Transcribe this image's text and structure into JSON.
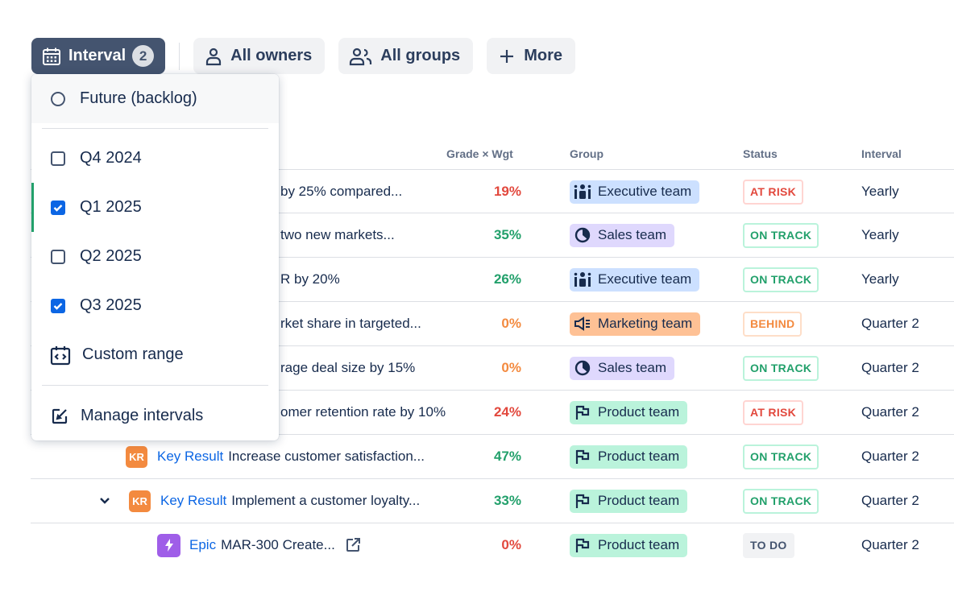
{
  "toolbar": {
    "interval_label": "Interval",
    "interval_count": "2",
    "owners_label": "All owners",
    "groups_label": "All groups",
    "more_label": "More"
  },
  "table": {
    "columns": {
      "grade": "Grade × Wgt",
      "group": "Group",
      "status": "Status",
      "interval": "Interval"
    },
    "rows": [
      {
        "title": "by 25% compared...",
        "grade": "19%",
        "group": "Executive team",
        "status": "AT RISK",
        "interval": "Yearly"
      },
      {
        "title": "two new markets...",
        "grade": "35%",
        "group": "Sales team",
        "status": "ON TRACK",
        "interval": "Yearly"
      },
      {
        "title": "R by 20%",
        "grade": "26%",
        "group": "Executive team",
        "status": "ON TRACK",
        "interval": "Yearly"
      },
      {
        "title": "rket share in targeted...",
        "grade": "0%",
        "group": "Marketing team",
        "status": "BEHIND",
        "interval": "Quarter 2"
      },
      {
        "title": "rage deal size by 15%",
        "grade": "0%",
        "group": "Sales team",
        "status": "ON TRACK",
        "interval": "Quarter 2"
      },
      {
        "title": "omer retention rate by 10%",
        "grade": "24%",
        "group": "Product team",
        "status": "AT RISK",
        "interval": "Quarter 2"
      },
      {
        "badge": "KR",
        "type": "Key Result",
        "title": "Increase customer satisfaction...",
        "grade": "47%",
        "group": "Product team",
        "status": "ON TRACK",
        "interval": "Quarter 2"
      },
      {
        "badge": "KR",
        "type": "Key Result",
        "title": "Implement a customer loyalty...",
        "grade": "33%",
        "group": "Product team",
        "status": "ON TRACK",
        "interval": "Quarter 2"
      },
      {
        "type": "Epic",
        "title": "MAR-300 Create...",
        "grade": "0%",
        "group": "Product team",
        "status": "TO DO",
        "interval": "Quarter 2"
      }
    ],
    "header_fragment": ":"
  },
  "dropdown": {
    "items": [
      {
        "label": "Future (backlog)",
        "kind": "radio",
        "checked": false
      },
      {
        "label": "Q4 2024",
        "kind": "checkbox",
        "checked": false
      },
      {
        "label": "Q1 2025",
        "kind": "checkbox",
        "checked": true
      },
      {
        "label": "Q2 2025",
        "kind": "checkbox",
        "checked": false
      },
      {
        "label": "Q3 2025",
        "kind": "checkbox",
        "checked": true
      },
      {
        "label": "Custom range",
        "kind": "action",
        "icon": "calendar-code-icon"
      },
      {
        "label": "Manage intervals",
        "kind": "action",
        "icon": "edit-icon"
      }
    ]
  },
  "colors": {
    "accent": "#0c66e4",
    "checkbox": "#0c66e4",
    "at_risk": "#e2483d",
    "on_track": "#22a06b",
    "behind": "#f38a3f"
  }
}
